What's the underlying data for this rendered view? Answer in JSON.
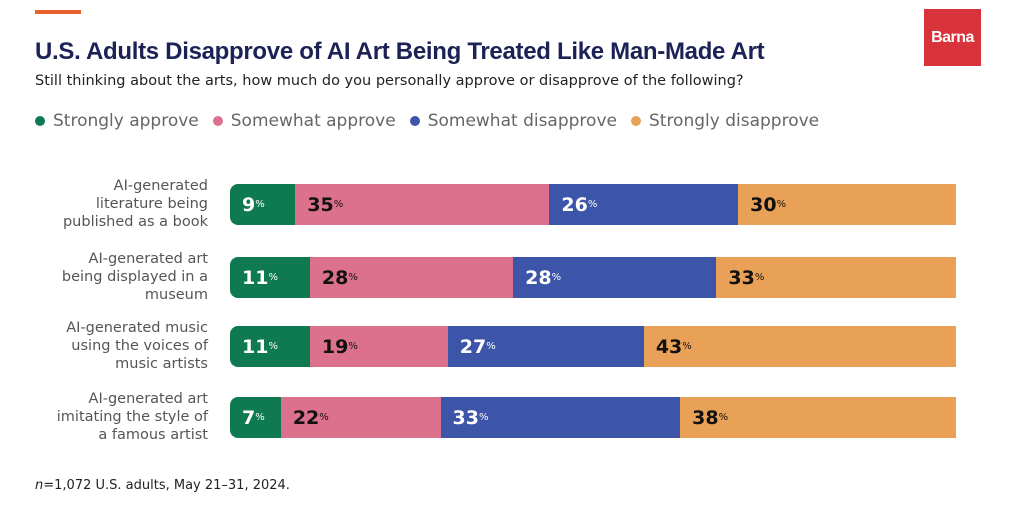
{
  "logo": "Barna",
  "chart_data": {
    "type": "bar",
    "orientation": "horizontal-stacked",
    "title": "U.S. Adults Disapprove of AI Art Being Treated Like Man-Made Art",
    "subtitle": "Still thinking about the arts, how much do you personally approve or disapprove of the following?",
    "legend_position": "top-left",
    "categories": [
      "AI-generated literature being published as a book",
      "AI-generated art being displayed in a museum",
      "AI-generated music using the voices of music artists",
      "AI-generated art imitating the style of a famous artist"
    ],
    "category_lines": [
      [
        "AI-generated",
        "literature being",
        "published as a book"
      ],
      [
        "AI-generated art",
        "being displayed in a",
        "museum"
      ],
      [
        "AI-generated music",
        "using the voices of",
        "music artists"
      ],
      [
        "AI-generated art",
        "imitating the style of",
        "a famous artist"
      ]
    ],
    "series": [
      {
        "name": "Strongly approve",
        "color": "#0f7a52",
        "text_color": "#ffffff",
        "values": [
          9,
          11,
          11,
          7
        ]
      },
      {
        "name": "Somewhat approve",
        "color": "#dc718e",
        "text_color": "#111111",
        "values": [
          35,
          28,
          19,
          22
        ]
      },
      {
        "name": "Somewhat disapprove",
        "color": "#3c55a8",
        "text_color": "#ffffff",
        "values": [
          26,
          28,
          27,
          33
        ]
      },
      {
        "name": "Strongly disapprove",
        "color": "#e9a057",
        "text_color": "#111111",
        "values": [
          30,
          33,
          43,
          38
        ]
      }
    ],
    "unit": "%",
    "note_n": "n",
    "note": "=1,072 U.S. adults, May 21–31, 2024."
  }
}
